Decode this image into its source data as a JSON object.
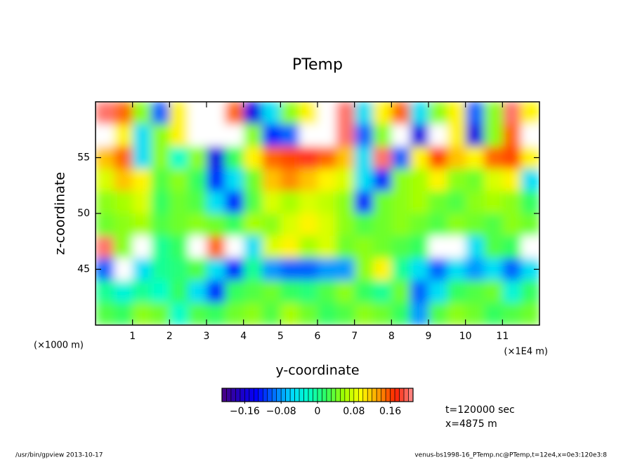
{
  "chart_data": {
    "type": "heatmap",
    "title": "PTemp",
    "x_label": "y-coordinate",
    "y_label": "z-coordinate",
    "x_unit": "(×1E4 m)",
    "y_unit": "(×1000 m)",
    "xlim": [
      0,
      12
    ],
    "ylim": [
      40,
      60
    ],
    "xticks": [
      1,
      2,
      3,
      4,
      5,
      6,
      7,
      8,
      9,
      10,
      11
    ],
    "yticks": [
      45,
      50,
      55
    ],
    "x": [
      0.25,
      0.75,
      1.25,
      1.75,
      2.25,
      2.75,
      3.25,
      3.75,
      4.25,
      4.75,
      5.25,
      5.75,
      6.25,
      6.75,
      7.25,
      7.75,
      8.25,
      8.75,
      9.25,
      9.75,
      10.25,
      10.75,
      11.25,
      11.75
    ],
    "y": [
      59,
      57,
      55,
      53,
      51,
      49,
      47,
      45,
      43,
      41
    ],
    "values": [
      [
        0.2,
        0.15,
        0.05,
        -0.1,
        0.1,
        0.22,
        0.22,
        0.15,
        -0.15,
        -0.05,
        0.05,
        0.1,
        0.25,
        0.2,
        -0.05,
        0.1,
        0.15,
        -0.05,
        0.05,
        0.1,
        -0.1,
        0.05,
        0.2,
        0.1
      ],
      [
        0.25,
        0.1,
        -0.05,
        0.05,
        0.1,
        0.25,
        0.25,
        0.22,
        0.05,
        -0.12,
        -0.1,
        0.22,
        0.22,
        0.2,
        -0.1,
        0.05,
        0.22,
        -0.15,
        0.22,
        0.1,
        -0.15,
        0.05,
        0.15,
        0.25
      ],
      [
        0.12,
        0.15,
        -0.05,
        0.05,
        -0.02,
        0.05,
        -0.15,
        0.02,
        0.1,
        0.15,
        0.16,
        0.18,
        0.15,
        0.12,
        -0.05,
        0.2,
        -0.1,
        0.1,
        0.16,
        0.12,
        0.1,
        0.15,
        0.16,
        0.1
      ],
      [
        0.08,
        0.12,
        0.1,
        0.03,
        0.05,
        0.02,
        -0.12,
        -0.05,
        0.04,
        0.12,
        0.14,
        0.12,
        0.1,
        0.08,
        -0.05,
        -0.12,
        0.05,
        0.06,
        0.1,
        0.05,
        0.04,
        0.08,
        0.1,
        -0.05
      ],
      [
        0.05,
        0.06,
        0.08,
        0.02,
        0.04,
        0.03,
        -0.05,
        -0.12,
        0.03,
        0.08,
        0.06,
        0.08,
        0.07,
        0.05,
        -0.12,
        0.04,
        0.05,
        0.06,
        0.04,
        0.03,
        0.05,
        0.06,
        0.05,
        0.02
      ],
      [
        0.04,
        0.05,
        0.06,
        0.03,
        0.04,
        0.05,
        0.04,
        0.02,
        0.06,
        0.05,
        0.08,
        0.1,
        0.08,
        0.05,
        0.03,
        0.04,
        0.05,
        0.04,
        0.03,
        0.05,
        0.04,
        0.03,
        0.05,
        0.04
      ],
      [
        0.2,
        0.05,
        0.25,
        0.0,
        0.02,
        0.25,
        0.15,
        0.25,
        -0.05,
        0.08,
        0.1,
        0.06,
        0.08,
        0.04,
        0.05,
        0.04,
        0.03,
        0.02,
        0.25,
        0.25,
        -0.05,
        0.03,
        0.02,
        0.25
      ],
      [
        -0.1,
        0.22,
        -0.05,
        0.0,
        0.01,
        0.03,
        -0.05,
        -0.12,
        0.0,
        -0.08,
        -0.1,
        -0.1,
        -0.08,
        -0.08,
        0.05,
        0.1,
        0.0,
        -0.05,
        -0.1,
        -0.05,
        -0.08,
        -0.05,
        -0.1,
        -0.05
      ],
      [
        0.0,
        -0.03,
        0.0,
        -0.02,
        0.02,
        -0.05,
        -0.12,
        0.02,
        0.03,
        0.04,
        0.02,
        0.01,
        0.03,
        0.05,
        0.02,
        0.0,
        0.04,
        -0.1,
        -0.05,
        0.02,
        0.03,
        0.04,
        -0.03,
        0.02
      ],
      [
        0.03,
        0.02,
        0.05,
        0.04,
        -0.02,
        0.03,
        0.02,
        0.04,
        0.05,
        0.03,
        0.06,
        0.04,
        0.02,
        0.03,
        0.05,
        0.04,
        0.02,
        -0.08,
        0.03,
        0.05,
        0.04,
        0.02,
        0.03,
        0.04
      ]
    ],
    "colormap": [
      "#4b0082",
      "#2000c0",
      "#0000ff",
      "#0070ff",
      "#00d8ff",
      "#00ffc8",
      "#30ff60",
      "#a0ff00",
      "#ffff00",
      "#ffa000",
      "#ff2000",
      "#ff9090"
    ],
    "over_color": "#ffffff",
    "clim": [
      -0.21,
      0.21
    ],
    "colorbar_levels": 42,
    "colorbar_ticks": [
      {
        "value": -0.16,
        "label": "−0.16"
      },
      {
        "value": -0.08,
        "label": "−0.08"
      },
      0,
      0.08,
      0.16
    ],
    "annotations": [
      "t=120000 sec",
      "x=4875 m"
    ],
    "footer_left": "/usr/bin/gpview   2013-10-17",
    "footer_right": "venus-bs1998-16_PTemp.nc@PTemp,t=12e4,x=0e3:120e3:8"
  }
}
